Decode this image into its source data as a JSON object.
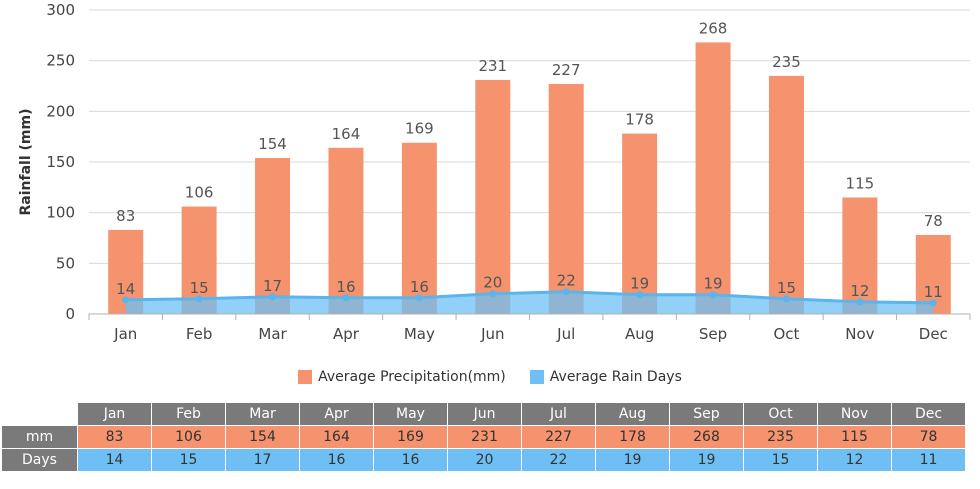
{
  "chart_data": {
    "type": "bar",
    "ylabel": "Rainfall (mm)",
    "xlabel": "",
    "ylim": [
      0,
      300
    ],
    "yticks": [
      0,
      50,
      100,
      150,
      200,
      250,
      300
    ],
    "grid": true,
    "legend_position": "bottom",
    "categories": [
      "Jan",
      "Feb",
      "Mar",
      "Apr",
      "May",
      "Jun",
      "Jul",
      "Aug",
      "Sep",
      "Oct",
      "Nov",
      "Dec"
    ],
    "series": [
      {
        "name": "Average Precipitation(mm)",
        "type": "bar",
        "color": "#f4936d",
        "values": [
          83,
          106,
          154,
          164,
          169,
          231,
          227,
          178,
          268,
          235,
          115,
          78
        ]
      },
      {
        "name": "Average Rain Days",
        "type": "area",
        "color": "#6ec0f4",
        "values": [
          14,
          15,
          17,
          16,
          16,
          20,
          22,
          19,
          19,
          15,
          12,
          11
        ]
      }
    ]
  },
  "table": {
    "row_labels": [
      "mm",
      "Days"
    ]
  }
}
